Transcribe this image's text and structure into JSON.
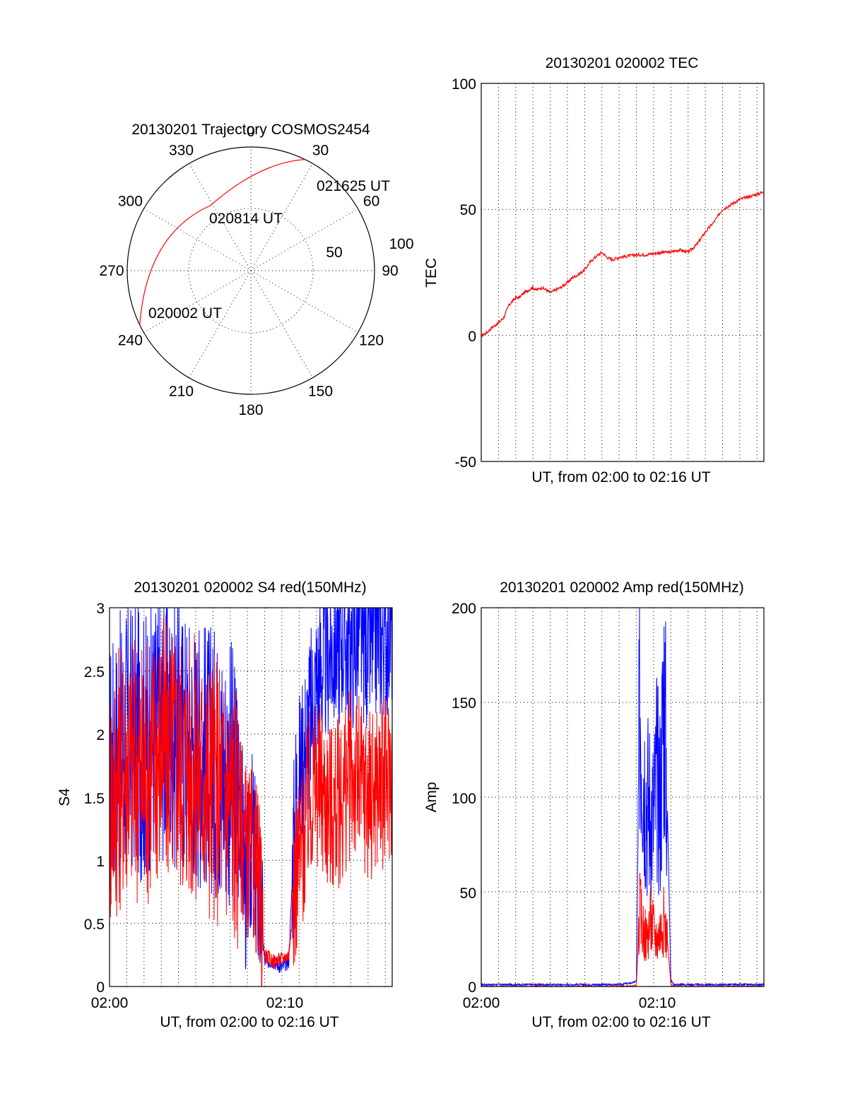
{
  "polar": {
    "title": "20130201 Trajectory COSMOS2454",
    "azimuth_labels": [
      "0",
      "30",
      "60",
      "90",
      "120",
      "150",
      "180",
      "210",
      "240",
      "270",
      "300",
      "330"
    ],
    "radial_labels": [
      "50",
      "100"
    ],
    "time_labels": [
      "021625 UT",
      "020814 UT",
      "020002 UT"
    ],
    "colors": {
      "track": "#ff0000"
    }
  },
  "tec": {
    "title": "20130201 020002 TEC",
    "ylabel": "TEC",
    "xlabel": "UT, from 02:00 to 02:16 UT",
    "yticks": [
      "100",
      "50",
      "0",
      "-50"
    ]
  },
  "s4": {
    "title": "20130201 020002 S4 red(150MHz)",
    "ylabel": "S4",
    "xlabel": "UT, from 02:00 to 02:16 UT",
    "yticks": [
      "3",
      "2.5",
      "2",
      "1.5",
      "1",
      "0.5",
      "0"
    ],
    "xticks": [
      "02:00",
      "02:10"
    ]
  },
  "amp": {
    "title": "20130201 020002 Amp red(150MHz)",
    "ylabel": "Amp",
    "xlabel": "UT, from 02:00 to 02:16 UT",
    "yticks": [
      "200",
      "150",
      "100",
      "50",
      "0"
    ],
    "xticks": [
      "02:00",
      "02:10"
    ]
  },
  "chart_data": [
    {
      "type": "scatter",
      "panel": "polar",
      "title": "20130201 Trajectory COSMOS2454",
      "coordinate_system": "polar (azimuth deg, zenith distance)",
      "radial_range": [
        0,
        100
      ],
      "track": {
        "times": [
          "020002 UT",
          "020814 UT",
          "021625 UT"
        ],
        "azimuth_deg": [
          244,
          328,
          26
        ],
        "radius": [
          100,
          62,
          100
        ]
      },
      "colors": {
        "track": "#ff0000"
      }
    },
    {
      "type": "line",
      "panel": "tec",
      "title": "20130201 020002 TEC",
      "ylabel": "TEC",
      "xlabel": "UT, from 02:00 to 02:16 UT",
      "xlim": [
        0,
        16.4
      ],
      "ylim": [
        -50,
        100
      ],
      "grid": true,
      "series": [
        {
          "color": "#ff0000",
          "x": [
            0,
            0.3,
            0.6,
            1.0,
            1.3,
            1.6,
            2.0,
            2.2,
            2.5,
            3.0,
            3.2,
            3.5,
            3.8,
            4.0,
            4.3,
            4.6,
            5.0,
            5.3,
            5.6,
            6.0,
            6.3,
            6.6,
            7.0,
            7.3,
            7.6,
            8.0,
            8.5,
            9.0,
            9.5,
            10.0,
            10.5,
            11.0,
            11.5,
            12.0,
            12.5,
            13.0,
            13.5,
            14.0,
            14.5,
            15.0,
            15.5,
            16.0,
            16.4
          ],
          "y": [
            0,
            1,
            3,
            5,
            7,
            12,
            15,
            15,
            17,
            19,
            18,
            19,
            18,
            17,
            18,
            19,
            21,
            23,
            24,
            26,
            29,
            31,
            33,
            31,
            30,
            31,
            31.5,
            32,
            32,
            32.5,
            33,
            33,
            34,
            33,
            36,
            41,
            45,
            50,
            52,
            54,
            55,
            56,
            57
          ]
        }
      ]
    },
    {
      "type": "line",
      "panel": "s4",
      "title": "20130201 020002 S4 red(150MHz)",
      "ylabel": "S4",
      "xlabel": "UT, from 02:00 to 02:16 UT",
      "xlim": [
        0,
        16.4
      ],
      "ylim": [
        0,
        3
      ],
      "grid": true,
      "series": [
        {
          "color": "#0000ff",
          "x": [
            0,
            1,
            2,
            3,
            4,
            5,
            6,
            7,
            7.6,
            7.9,
            8.3,
            8.6,
            9.0,
            9.5,
            10.0,
            10.4,
            10.8,
            11.2,
            11.6,
            12.0,
            12.5,
            13.0,
            13.5,
            14.0,
            14.5,
            15.0,
            15.5,
            16.0,
            16.4
          ],
          "y": [
            1.7,
            2.0,
            1.9,
            2.1,
            2.0,
            1.9,
            1.8,
            1.7,
            1.5,
            0.75,
            1.2,
            0.8,
            0.2,
            0.2,
            0.15,
            0.2,
            1.5,
            1.8,
            2.1,
            2.4,
            2.6,
            2.7,
            2.8,
            2.7,
            2.8,
            2.7,
            2.8,
            2.8,
            2.9
          ]
        },
        {
          "color": "#ff0000",
          "x": [
            0,
            1,
            2,
            3,
            4,
            5,
            6,
            7,
            7.6,
            7.9,
            8.3,
            8.6,
            9.0,
            9.5,
            10.0,
            10.4,
            10.8,
            11.2,
            11.6,
            12.0,
            12.5,
            13.0,
            13.5,
            14.0,
            14.5,
            15.0,
            15.5,
            16.0,
            16.4
          ],
          "y": [
            1.5,
            1.8,
            1.7,
            1.9,
            1.8,
            1.7,
            1.6,
            1.5,
            1.3,
            1.1,
            1.0,
            0.9,
            0.25,
            0.2,
            0.22,
            0.25,
            0.9,
            1.1,
            1.5,
            1.6,
            1.5,
            1.4,
            1.5,
            1.7,
            1.6,
            1.5,
            1.6,
            1.6,
            1.7
          ]
        }
      ]
    },
    {
      "type": "line",
      "panel": "amp",
      "title": "20130201 020002 Amp red(150MHz)",
      "ylabel": "Amp",
      "xlabel": "UT, from 02:00 to 02:16 UT",
      "xlim": [
        0,
        16.4
      ],
      "ylim": [
        0,
        200
      ],
      "grid": true,
      "series": [
        {
          "color": "#0000ff",
          "x": [
            0,
            2,
            4,
            6,
            8,
            8.8,
            9.0,
            9.2,
            9.4,
            9.6,
            9.8,
            10.0,
            10.2,
            10.4,
            10.6,
            10.8,
            11.0,
            11.2,
            12,
            14,
            16.4
          ],
          "y": [
            1,
            1,
            1,
            1,
            1,
            2,
            3,
            160,
            120,
            100,
            95,
            90,
            110,
            100,
            160,
            95,
            3,
            1,
            1,
            1,
            1
          ]
        },
        {
          "color": "#ff0000",
          "x": [
            0,
            2,
            4,
            6,
            8,
            8.8,
            9.0,
            9.2,
            9.4,
            9.6,
            9.8,
            10.0,
            10.2,
            10.4,
            10.6,
            10.8,
            11.0,
            11.2,
            12,
            14,
            16.4
          ],
          "y": [
            0,
            0,
            0,
            0,
            0,
            0,
            1,
            40,
            30,
            25,
            35,
            30,
            25,
            30,
            35,
            25,
            1,
            0,
            0,
            0,
            0
          ]
        }
      ]
    }
  ]
}
